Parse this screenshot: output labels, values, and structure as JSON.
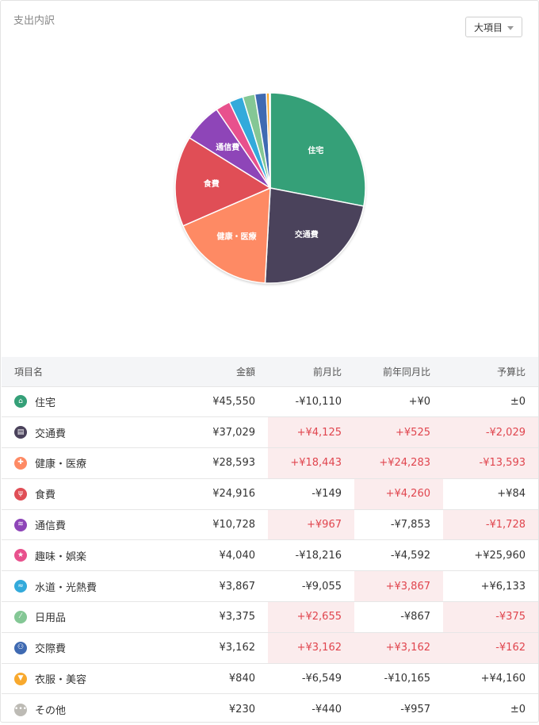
{
  "card": {
    "title": "支出内訳",
    "dropdown_label": "大項目"
  },
  "chart_data": {
    "type": "pie",
    "slices": [
      {
        "name": "住宅",
        "value": 45550,
        "color": "#35a078",
        "label": "住宅"
      },
      {
        "name": "交通費",
        "value": 37029,
        "color": "#4a425b",
        "label": "交通費"
      },
      {
        "name": "健康・医療",
        "value": 28593,
        "color": "#fe8a64",
        "label": "健康・医療"
      },
      {
        "name": "食費",
        "value": 24916,
        "color": "#e04e56",
        "label": "食費"
      },
      {
        "name": "通信費",
        "value": 10728,
        "color": "#8e45b8",
        "label": "通信費"
      },
      {
        "name": "趣味・娯楽",
        "value": 4040,
        "color": "#e8518d",
        "label": ""
      },
      {
        "name": "水道・光熱費",
        "value": 3867,
        "color": "#33aadb",
        "label": ""
      },
      {
        "name": "日用品",
        "value": 3375,
        "color": "#84c795",
        "label": ""
      },
      {
        "name": "交際費",
        "value": 3162,
        "color": "#3f6ab2",
        "label": ""
      },
      {
        "name": "衣服・美容",
        "value": 840,
        "color": "#f8a92e",
        "label": ""
      },
      {
        "name": "その他",
        "value": 230,
        "color": "#bdbbb5",
        "label": ""
      }
    ]
  },
  "table": {
    "headers": [
      "項目名",
      "金額",
      "前月比",
      "前年同月比",
      "予算比"
    ],
    "rows": [
      {
        "icon": "house-icon",
        "color": "#35a078",
        "glyph": "⌂",
        "name": "住宅",
        "amount": "¥45,550",
        "mom": "-¥10,110",
        "yoy": "+¥0",
        "budget": "±0",
        "mom_red": false,
        "yoy_red": false,
        "budget_red": false
      },
      {
        "icon": "train-icon",
        "color": "#4a425b",
        "glyph": "▤",
        "name": "交通費",
        "amount": "¥37,029",
        "mom": "+¥4,125",
        "yoy": "+¥525",
        "budget": "-¥2,029",
        "mom_red": true,
        "yoy_red": true,
        "budget_red": true
      },
      {
        "icon": "medical-cross-icon",
        "color": "#fe8a64",
        "glyph": "✚",
        "name": "健康・医療",
        "amount": "¥28,593",
        "mom": "+¥18,443",
        "yoy": "+¥24,283",
        "budget": "-¥13,593",
        "mom_red": true,
        "yoy_red": true,
        "budget_red": true
      },
      {
        "icon": "fork-knife-icon",
        "color": "#e04e56",
        "glyph": "ψ",
        "name": "食費",
        "amount": "¥24,916",
        "mom": "-¥149",
        "yoy": "+¥4,260",
        "budget": "+¥84",
        "mom_red": false,
        "yoy_red": true,
        "budget_red": false
      },
      {
        "icon": "antenna-icon",
        "color": "#8e45b8",
        "glyph": "≋",
        "name": "通信費",
        "amount": "¥10,728",
        "mom": "+¥967",
        "yoy": "-¥7,853",
        "budget": "-¥1,728",
        "mom_red": true,
        "yoy_red": false,
        "budget_red": true
      },
      {
        "icon": "star-icon",
        "color": "#e8518d",
        "glyph": "★",
        "name": "趣味・娯楽",
        "amount": "¥4,040",
        "mom": "-¥18,216",
        "yoy": "-¥4,592",
        "budget": "+¥25,960",
        "mom_red": false,
        "yoy_red": false,
        "budget_red": false
      },
      {
        "icon": "faucet-icon",
        "color": "#33aadb",
        "glyph": "≈",
        "name": "水道・光熱費",
        "amount": "¥3,867",
        "mom": "-¥9,055",
        "yoy": "+¥3,867",
        "budget": "+¥6,133",
        "mom_red": false,
        "yoy_red": true,
        "budget_red": false
      },
      {
        "icon": "bandage-icon",
        "color": "#84c795",
        "glyph": "⁄",
        "name": "日用品",
        "amount": "¥3,375",
        "mom": "+¥2,655",
        "yoy": "-¥867",
        "budget": "-¥375",
        "mom_red": true,
        "yoy_red": false,
        "budget_red": true
      },
      {
        "icon": "people-icon",
        "color": "#3f6ab2",
        "glyph": "⚇",
        "name": "交際費",
        "amount": "¥3,162",
        "mom": "+¥3,162",
        "yoy": "+¥3,162",
        "budget": "-¥162",
        "mom_red": true,
        "yoy_red": true,
        "budget_red": true
      },
      {
        "icon": "shirt-icon",
        "color": "#f8a92e",
        "glyph": "▼",
        "name": "衣服・美容",
        "amount": "¥840",
        "mom": "-¥6,549",
        "yoy": "-¥10,165",
        "budget": "+¥4,160",
        "mom_red": false,
        "yoy_red": false,
        "budget_red": false
      },
      {
        "icon": "ellipsis-icon",
        "color": "#bdbbb5",
        "glyph": "•••",
        "name": "その他",
        "amount": "¥230",
        "mom": "-¥440",
        "yoy": "-¥957",
        "budget": "±0",
        "mom_red": false,
        "yoy_red": false,
        "budget_red": false
      }
    ]
  }
}
